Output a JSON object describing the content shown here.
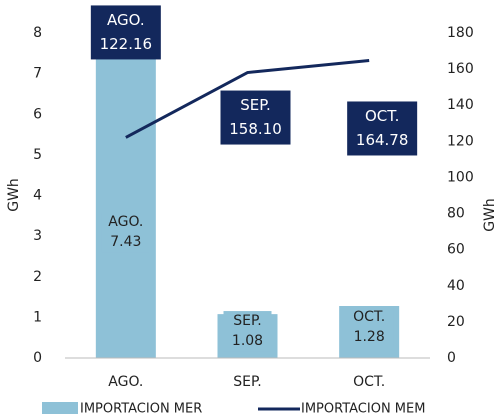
{
  "chart_data": {
    "type": "bar_line",
    "categories": [
      "AGO.",
      "SEP.",
      "OCT."
    ],
    "series": [
      {
        "name": "IMPORTACION MER",
        "color": "#8ec1d7",
        "values": [
          7.43,
          1.08,
          1.28
        ]
      },
      {
        "name": "IMPORTACION MEM",
        "color": "#13285c",
        "axis": "y2",
        "values": [
          122.16,
          158.1,
          164.78
        ],
        "value_labels": [
          "122.16",
          "158.10",
          "164.78"
        ]
      }
    ],
    "ylabel": "GWh",
    "y2label": "GWh",
    "ylim": [
      0,
      8
    ],
    "yticks": [
      0,
      1,
      2,
      3,
      4,
      5,
      6,
      7,
      8
    ],
    "y2lim": [
      0,
      180
    ],
    "y2ticks": [
      0,
      20,
      40,
      60,
      80,
      100,
      120,
      140,
      160,
      180
    ],
    "grid": false,
    "legend": "bottom"
  }
}
